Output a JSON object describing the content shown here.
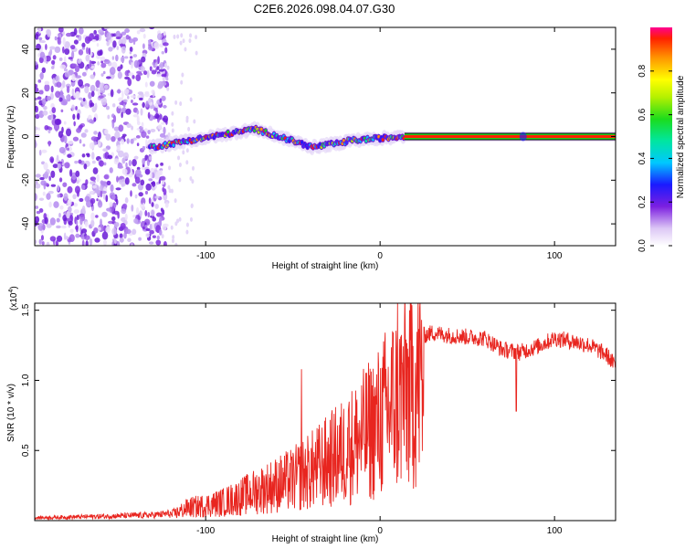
{
  "title": "C2E6.2026.098.04.07.G30",
  "chart_data": [
    {
      "type": "heatmap",
      "name": "spectrogram",
      "xlabel": "Height of straight line (km)",
      "ylabel": "Frequency (Hz)",
      "xlim": [
        -198,
        135
      ],
      "ylim": [
        -50,
        50
      ],
      "xticks": [
        -100,
        0,
        100
      ],
      "yticks": [
        -40,
        -20,
        0,
        20,
        40
      ],
      "colorbar": {
        "label": "Normalized spectral amplitude",
        "range": [
          0,
          1
        ],
        "ticks": [
          "0.0",
          "0.2",
          "0.4",
          "0.6",
          "0.8"
        ]
      },
      "features": [
        {
          "region": "noise",
          "x_range": [
            -198,
            -122
          ],
          "y_range": [
            -50,
            50
          ],
          "amplitude": 0.1
        },
        {
          "region": "wandering-line",
          "x_range": [
            -132,
            14
          ],
          "y_center_range": [
            -6,
            6
          ],
          "amplitude": 0.6
        },
        {
          "region": "steady-line",
          "x_range": [
            14,
            135
          ],
          "y_center": 0,
          "amplitude": 1.0
        }
      ]
    },
    {
      "type": "line",
      "name": "snr",
      "xlabel": "Height of straight line (km)",
      "ylabel": "SNR (10 * v/v)",
      "y_multiplier": "(x10",
      "y_exponent": "4",
      "y_multiplier_close": ")",
      "xlim": [
        -198,
        135
      ],
      "ylim": [
        0,
        1.55
      ],
      "xticks": [
        -100,
        0,
        100
      ],
      "yticks": [
        "0.5",
        "1.0",
        "1.5"
      ],
      "series": [
        {
          "name": "SNR",
          "color": "#e8251f",
          "points": [
            [
              -198,
              0.02
            ],
            [
              -160,
              0.03
            ],
            [
              -130,
              0.04
            ],
            [
              -120,
              0.05
            ],
            [
              -110,
              0.12
            ],
            [
              -100,
              0.14
            ],
            [
              -90,
              0.17
            ],
            [
              -80,
              0.22
            ],
            [
              -70,
              0.28
            ],
            [
              -60,
              0.33
            ],
            [
              -50,
              0.38
            ],
            [
              -40,
              0.46
            ],
            [
              -30,
              0.55
            ],
            [
              -20,
              0.65
            ],
            [
              -10,
              0.78
            ],
            [
              0,
              0.92
            ],
            [
              5,
              1.05
            ],
            [
              10,
              1.12
            ],
            [
              15,
              1.2
            ],
            [
              20,
              1.28
            ],
            [
              25,
              1.32
            ],
            [
              30,
              1.34
            ],
            [
              40,
              1.32
            ],
            [
              50,
              1.31
            ],
            [
              60,
              1.3
            ],
            [
              70,
              1.22
            ],
            [
              80,
              1.2
            ],
            [
              90,
              1.24
            ],
            [
              100,
              1.3
            ],
            [
              110,
              1.28
            ],
            [
              120,
              1.25
            ],
            [
              130,
              1.18
            ],
            [
              135,
              1.1
            ]
          ],
          "spikes": [
            [
              -45,
              1.08
            ],
            [
              -18,
              0.82
            ],
            [
              10,
              1.55
            ],
            [
              12,
              0.3
            ],
            [
              78,
              0.78
            ]
          ]
        }
      ]
    }
  ]
}
